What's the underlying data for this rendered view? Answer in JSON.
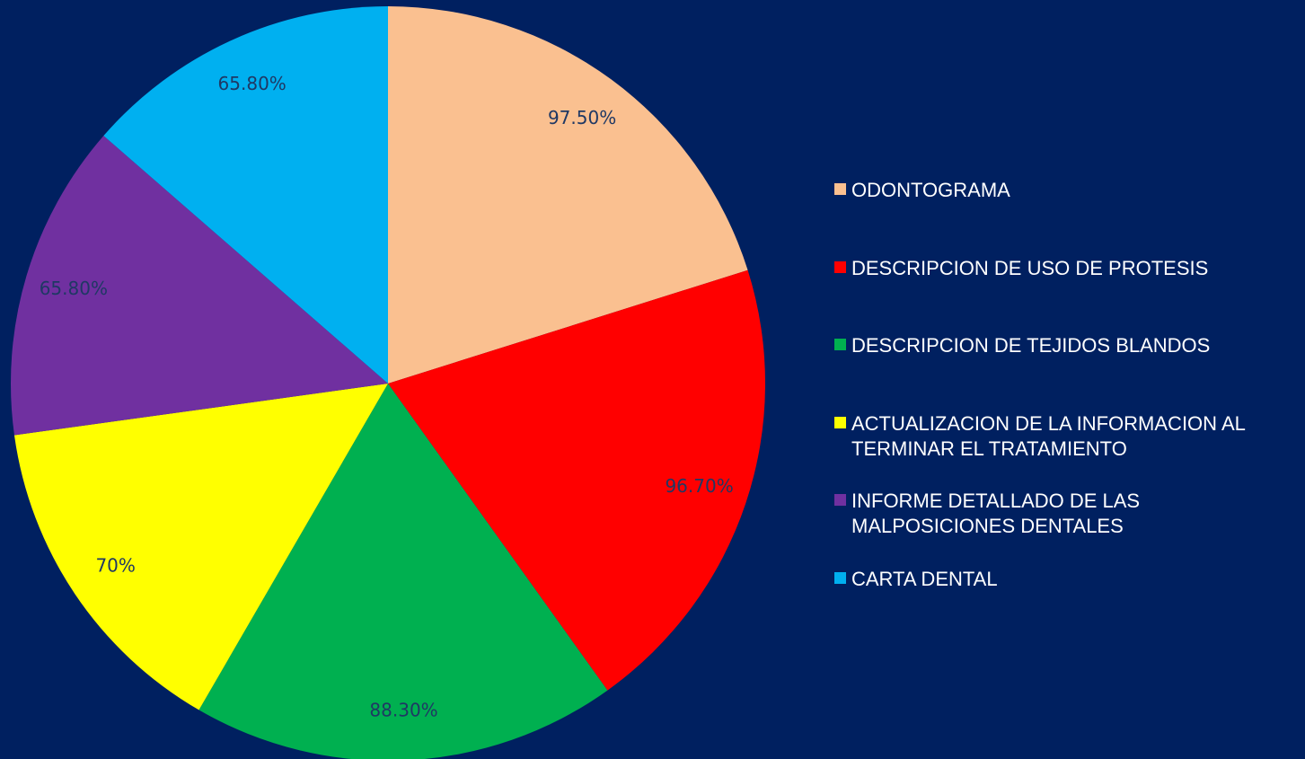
{
  "chart_data": {
    "type": "pie",
    "categories": [
      "ODONTOGRAMA",
      "DESCRIPCION DE USO DE PROTESIS",
      "DESCRIPCION DE TEJIDOS BLANDOS",
      "ACTUALIZACION DE LA INFORMACION AL TERMINAR EL TRATAMIENTO",
      "INFORME DETALLADO DE LAS MALPOSICIONES DENTALES",
      "CARTA DENTAL"
    ],
    "values": [
      97.5,
      96.7,
      88.3,
      70,
      65.8,
      65.8
    ],
    "value_labels": [
      "97.50%",
      "96.70%",
      "88.30%",
      "70%",
      "65.80%",
      "65.80%"
    ],
    "colors": [
      "#FAC090",
      "#FF0000",
      "#00B050",
      "#FFFF00",
      "#7030A0",
      "#00B0F0"
    ],
    "legend": "right"
  }
}
